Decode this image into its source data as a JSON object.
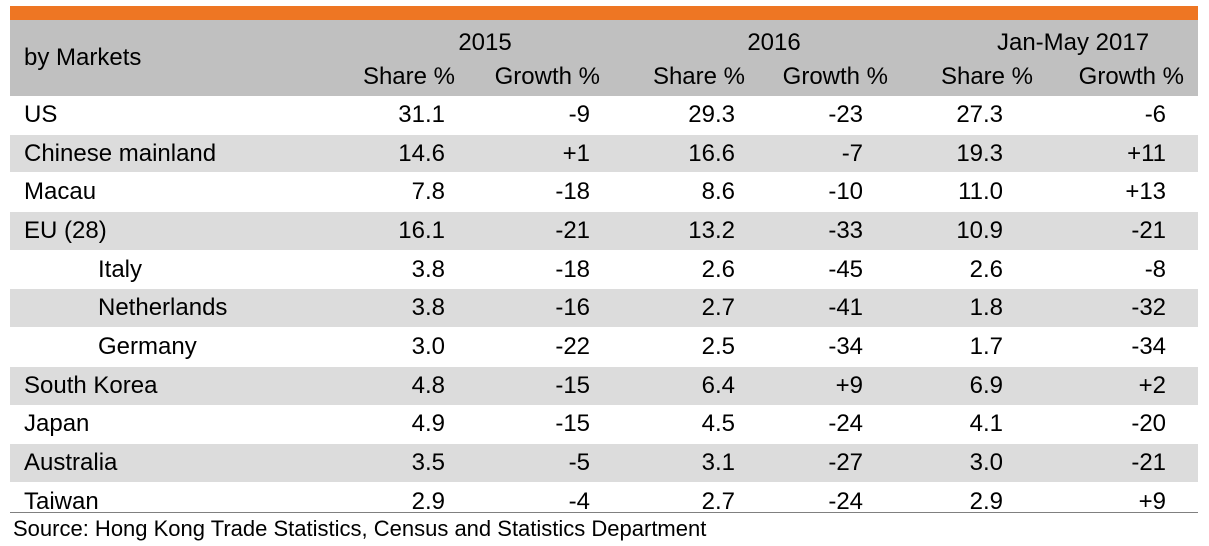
{
  "table": {
    "corner_label": "by Markets",
    "years": [
      "2015",
      "2016",
      "Jan-May 2017"
    ],
    "sub_headers": [
      "Share %",
      "Growth %",
      "Share %",
      "Growth %",
      "Share %",
      "Growth %"
    ],
    "rows": [
      {
        "market": "US",
        "indent": false,
        "v": [
          "31.1",
          "-9",
          "29.3",
          "-23",
          "27.3",
          "-6"
        ]
      },
      {
        "market": "Chinese mainland",
        "indent": false,
        "v": [
          "14.6",
          "+1",
          "16.6",
          "-7",
          "19.3",
          "+11"
        ]
      },
      {
        "market": "Macau",
        "indent": false,
        "v": [
          "7.8",
          "-18",
          "8.6",
          "-10",
          "11.0",
          "+13"
        ]
      },
      {
        "market": "EU (28)",
        "indent": false,
        "v": [
          "16.1",
          "-21",
          "13.2",
          "-33",
          "10.9",
          "-21"
        ]
      },
      {
        "market": "Italy",
        "indent": true,
        "v": [
          "3.8",
          "-18",
          "2.6",
          "-45",
          "2.6",
          "-8"
        ]
      },
      {
        "market": "Netherlands",
        "indent": true,
        "v": [
          "3.8",
          "-16",
          "2.7",
          "-41",
          "1.8",
          "-32"
        ]
      },
      {
        "market": "Germany",
        "indent": true,
        "v": [
          "3.0",
          "-22",
          "2.5",
          "-34",
          "1.7",
          "-34"
        ]
      },
      {
        "market": "South Korea",
        "indent": false,
        "v": [
          "4.8",
          "-15",
          "6.4",
          "+9",
          "6.9",
          "+2"
        ]
      },
      {
        "market": "Japan",
        "indent": false,
        "v": [
          "4.9",
          "-15",
          "4.5",
          "-24",
          "4.1",
          "-20"
        ]
      },
      {
        "market": "Australia",
        "indent": false,
        "v": [
          "3.5",
          "-5",
          "3.1",
          "-27",
          "3.0",
          "-21"
        ]
      },
      {
        "market": "Taiwan",
        "indent": false,
        "v": [
          "2.9",
          "-4",
          "2.7",
          "-24",
          "2.9",
          "+9"
        ]
      }
    ]
  },
  "source": "Source: Hong Kong Trade Statistics, Census and Statistics Department",
  "colors": {
    "accent_bar": "#ee7623",
    "header_bg": "#c0c0c0",
    "stripe_bg": "#dcdcdc"
  },
  "chart_data": {
    "type": "table",
    "title": "",
    "row_header": "by Markets",
    "column_groups": [
      "2015",
      "2016",
      "Jan-May 2017"
    ],
    "columns": [
      "Share %",
      "Growth %",
      "Share %",
      "Growth %",
      "Share %",
      "Growth %"
    ],
    "rows": [
      "US",
      "Chinese mainland",
      "Macau",
      "EU (28)",
      "Italy",
      "Netherlands",
      "Germany",
      "South Korea",
      "Japan",
      "Australia",
      "Taiwan"
    ],
    "values": [
      [
        31.1,
        -9,
        29.3,
        -23,
        27.3,
        -6
      ],
      [
        14.6,
        1,
        16.6,
        -7,
        19.3,
        11
      ],
      [
        7.8,
        -18,
        8.6,
        -10,
        11.0,
        13
      ],
      [
        16.1,
        -21,
        13.2,
        -33,
        10.9,
        -21
      ],
      [
        3.8,
        -18,
        2.6,
        -45,
        2.6,
        -8
      ],
      [
        3.8,
        -16,
        2.7,
        -41,
        1.8,
        -32
      ],
      [
        3.0,
        -22,
        2.5,
        -34,
        1.7,
        -34
      ],
      [
        4.8,
        -15,
        6.4,
        9,
        6.9,
        2
      ],
      [
        4.9,
        -15,
        4.5,
        -24,
        4.1,
        -20
      ],
      [
        3.5,
        -5,
        3.1,
        -27,
        3.0,
        -21
      ],
      [
        2.9,
        -4,
        2.7,
        -24,
        2.9,
        9
      ]
    ]
  }
}
